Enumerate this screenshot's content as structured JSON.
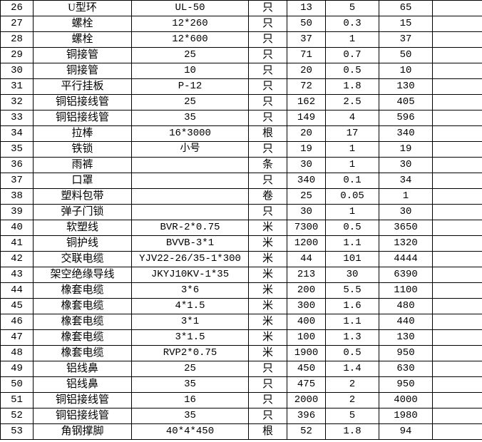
{
  "rows": [
    {
      "no": "26",
      "name": "U型环",
      "spec": "UL-50",
      "unit": "只",
      "qty": "13",
      "price": "5",
      "total": "65"
    },
    {
      "no": "27",
      "name": "螺栓",
      "spec": "12*260",
      "unit": "只",
      "qty": "50",
      "price": "0.3",
      "total": "15"
    },
    {
      "no": "28",
      "name": "螺栓",
      "spec": "12*600",
      "unit": "只",
      "qty": "37",
      "price": "1",
      "total": "37"
    },
    {
      "no": "29",
      "name": "铜接管",
      "spec": "25",
      "unit": "只",
      "qty": "71",
      "price": "0.7",
      "total": "50"
    },
    {
      "no": "30",
      "name": "铜接管",
      "spec": "10",
      "unit": "只",
      "qty": "20",
      "price": "0.5",
      "total": "10"
    },
    {
      "no": "31",
      "name": "平行挂板",
      "spec": "P-12",
      "unit": "只",
      "qty": "72",
      "price": "1.8",
      "total": "130"
    },
    {
      "no": "32",
      "name": "铜铝接线管",
      "spec": "25",
      "unit": "只",
      "qty": "162",
      "price": "2.5",
      "total": "405"
    },
    {
      "no": "33",
      "name": "铜铝接线管",
      "spec": "35",
      "unit": "只",
      "qty": "149",
      "price": "4",
      "total": "596"
    },
    {
      "no": "34",
      "name": "拉棒",
      "spec": "16*3000",
      "unit": "根",
      "qty": "20",
      "price": "17",
      "total": "340"
    },
    {
      "no": "35",
      "name": "铁锁",
      "spec": "小号",
      "unit": "只",
      "qty": "19",
      "price": "1",
      "total": "19"
    },
    {
      "no": "36",
      "name": "雨裤",
      "spec": "",
      "unit": "条",
      "qty": "30",
      "price": "1",
      "total": "30"
    },
    {
      "no": "37",
      "name": "口罩",
      "spec": "",
      "unit": "只",
      "qty": "340",
      "price": "0.1",
      "total": "34"
    },
    {
      "no": "38",
      "name": "塑料包带",
      "spec": "",
      "unit": "卷",
      "qty": "25",
      "price": "0.05",
      "total": "1"
    },
    {
      "no": "39",
      "name": "弹子门锁",
      "spec": "",
      "unit": "只",
      "qty": "30",
      "price": "1",
      "total": "30"
    },
    {
      "no": "40",
      "name": "软塑线",
      "spec": "BVR-2*0.75",
      "unit": "米",
      "qty": "7300",
      "price": "0.5",
      "total": "3650"
    },
    {
      "no": "41",
      "name": "铜护线",
      "spec": "BVVB-3*1",
      "unit": "米",
      "qty": "1200",
      "price": "1.1",
      "total": "1320"
    },
    {
      "no": "42",
      "name": "交联电缆",
      "spec": "YJV22-26/35-1*300",
      "unit": "米",
      "qty": "44",
      "price": "101",
      "total": "4444"
    },
    {
      "no": "43",
      "name": "架空绝缘导线",
      "spec": "JKYJ10KV-1*35",
      "unit": "米",
      "qty": "213",
      "price": "30",
      "total": "6390"
    },
    {
      "no": "44",
      "name": "橡套电缆",
      "spec": "3*6",
      "unit": "米",
      "qty": "200",
      "price": "5.5",
      "total": "1100"
    },
    {
      "no": "45",
      "name": "橡套电缆",
      "spec": "4*1.5",
      "unit": "米",
      "qty": "300",
      "price": "1.6",
      "total": "480"
    },
    {
      "no": "46",
      "name": "橡套电缆",
      "spec": "3*1",
      "unit": "米",
      "qty": "400",
      "price": "1.1",
      "total": "440"
    },
    {
      "no": "47",
      "name": "橡套电缆",
      "spec": "3*1.5",
      "unit": "米",
      "qty": "100",
      "price": "1.3",
      "total": "130"
    },
    {
      "no": "48",
      "name": "橡套电缆",
      "spec": "RVP2*0.75",
      "unit": "米",
      "qty": "1900",
      "price": "0.5",
      "total": "950"
    },
    {
      "no": "49",
      "name": "铝线鼻",
      "spec": "25",
      "unit": "只",
      "qty": "450",
      "price": "1.4",
      "total": "630"
    },
    {
      "no": "50",
      "name": "铝线鼻",
      "spec": "35",
      "unit": "只",
      "qty": "475",
      "price": "2",
      "total": "950"
    },
    {
      "no": "51",
      "name": "铜铝接线管",
      "spec": "16",
      "unit": "只",
      "qty": "2000",
      "price": "2",
      "total": "4000"
    },
    {
      "no": "52",
      "name": "铜铝接线管",
      "spec": "35",
      "unit": "只",
      "qty": "396",
      "price": "5",
      "total": "1980"
    },
    {
      "no": "53",
      "name": "角钢撑脚",
      "spec": "40*4*450",
      "unit": "根",
      "qty": "52",
      "price": "1.8",
      "total": "94"
    }
  ]
}
